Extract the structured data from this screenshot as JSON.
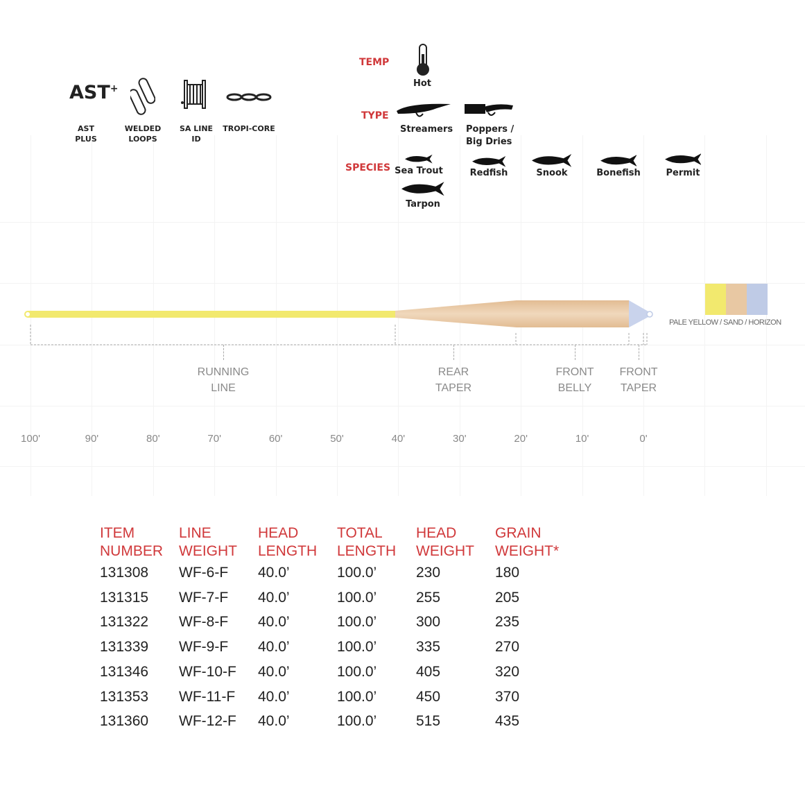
{
  "features": [
    {
      "icon": "ast-plus-logo",
      "label": "AST PLUS",
      "logo_text": "AST+"
    },
    {
      "icon": "welded-loops-icon",
      "label": "WELDED LOOPS"
    },
    {
      "icon": "sa-line-id-icon",
      "label": "SA LINE ID"
    },
    {
      "icon": "tropi-core-icon",
      "label": "TROPI-CORE"
    }
  ],
  "conditions": {
    "temp_label": "TEMP",
    "temp_value": "Hot",
    "type_label": "TYPE",
    "types": [
      "Streamers",
      "Poppers / Big Dries"
    ],
    "species_label": "SPECIES",
    "species": [
      "Sea Trout",
      "Redfish",
      "Snook",
      "Bonefish",
      "Permit",
      "Tarpon"
    ]
  },
  "colors": {
    "label": "PALE YELLOW / SAND / HORIZON",
    "swatches": [
      "#f2e96e",
      "#e8c8a3",
      "#bfcbe6"
    ]
  },
  "sections": {
    "running_line": [
      "RUNNING",
      "LINE"
    ],
    "rear_taper": [
      "REAR",
      "TAPER"
    ],
    "front_belly": [
      "FRONT",
      "BELLY"
    ],
    "front_taper": [
      "FRONT",
      "TAPER"
    ]
  },
  "scale": [
    "100'",
    "90'",
    "80'",
    "70'",
    "60'",
    "50'",
    "40'",
    "30'",
    "20'",
    "10'",
    "0'"
  ],
  "table": {
    "headers": [
      [
        "ITEM",
        "NUMBER"
      ],
      [
        "LINE",
        "WEIGHT"
      ],
      [
        "HEAD",
        "LENGTH"
      ],
      [
        "TOTAL",
        "LENGTH"
      ],
      [
        "HEAD",
        "WEIGHT"
      ],
      [
        "GRAIN",
        "WEIGHT*"
      ]
    ],
    "rows": [
      [
        "131308",
        "WF-6-F",
        "40.0’",
        "100.0’",
        "230",
        "180"
      ],
      [
        "131315",
        "WF-7-F",
        "40.0’",
        "100.0’",
        "255",
        "205"
      ],
      [
        "131322",
        "WF-8-F",
        "40.0’",
        "100.0’",
        "300",
        "235"
      ],
      [
        "131339",
        "WF-9-F",
        "40.0’",
        "100.0’",
        "335",
        "270"
      ],
      [
        "131346",
        "WF-10-F",
        "40.0’",
        "100.0’",
        "405",
        "320"
      ],
      [
        "131353",
        "WF-11-F",
        "40.0’",
        "100.0’",
        "450",
        "370"
      ],
      [
        "131360",
        "WF-12-F",
        "40.0’",
        "100.0’",
        "515",
        "435"
      ]
    ]
  }
}
